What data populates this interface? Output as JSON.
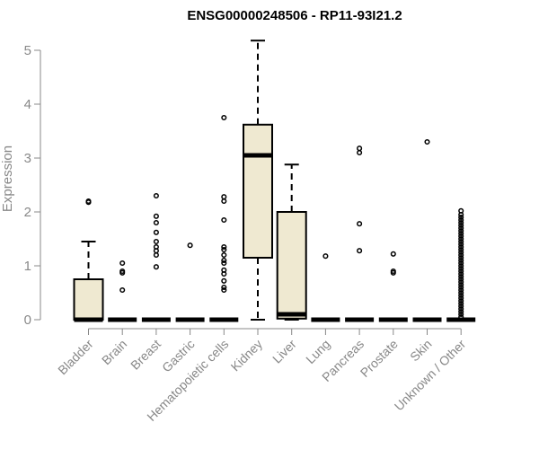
{
  "chart_data": {
    "type": "box",
    "title": "ENSG00000248506 - RP11-93I21.2",
    "ylabel": "Expression",
    "xlabel": "",
    "ylim": [
      0,
      5.2
    ],
    "yticks": [
      0,
      1,
      2,
      3,
      4,
      5
    ],
    "grid": false,
    "box_color": "#efe9d1",
    "categories": [
      "Bladder",
      "Brain",
      "Breast",
      "Gastric",
      "Hematopoietic cells",
      "Kidney",
      "Liver",
      "Lung",
      "Pancreas",
      "Prostate",
      "Skin",
      "Unknown / Other"
    ],
    "boxes": [
      {
        "name": "Bladder",
        "q1": 0,
        "median": 0,
        "q3": 0.75,
        "whisker_low": 0,
        "whisker_high": 1.45,
        "outliers": [
          2.18,
          2.2
        ]
      },
      {
        "name": "Brain",
        "q1": 0,
        "median": 0,
        "q3": 0,
        "whisker_low": 0,
        "whisker_high": 0,
        "outliers": [
          0.55,
          0.87,
          0.9,
          1.05
        ]
      },
      {
        "name": "Breast",
        "q1": 0,
        "median": 0,
        "q3": 0,
        "whisker_low": 0,
        "whisker_high": 0,
        "outliers": [
          0.98,
          1.2,
          1.28,
          1.35,
          1.45,
          1.62,
          1.8,
          1.92,
          2.3
        ]
      },
      {
        "name": "Gastric",
        "q1": 0,
        "median": 0,
        "q3": 0,
        "whisker_low": 0,
        "whisker_high": 0,
        "outliers": [
          1.38
        ]
      },
      {
        "name": "Hematopoietic cells",
        "q1": 0,
        "median": 0,
        "q3": 0,
        "whisker_low": 0,
        "whisker_high": 0,
        "outliers": [
          0.55,
          0.6,
          0.72,
          0.85,
          0.92,
          1.05,
          1.1,
          1.2,
          1.3,
          1.35,
          1.85,
          2.2,
          2.28,
          3.75
        ]
      },
      {
        "name": "Kidney",
        "q1": 1.15,
        "median": 3.05,
        "q3": 3.62,
        "whisker_low": 0,
        "whisker_high": 5.18,
        "outliers": []
      },
      {
        "name": "Liver",
        "q1": 0.02,
        "median": 0.1,
        "q3": 2.0,
        "whisker_low": 0,
        "whisker_high": 2.88,
        "outliers": []
      },
      {
        "name": "Lung",
        "q1": 0,
        "median": 0,
        "q3": 0,
        "whisker_low": 0,
        "whisker_high": 0,
        "outliers": [
          1.18
        ]
      },
      {
        "name": "Pancreas",
        "q1": 0,
        "median": 0,
        "q3": 0,
        "whisker_low": 0,
        "whisker_high": 0,
        "outliers": [
          1.28,
          1.78,
          3.1,
          3.18
        ]
      },
      {
        "name": "Prostate",
        "q1": 0,
        "median": 0,
        "q3": 0,
        "whisker_low": 0,
        "whisker_high": 0,
        "outliers": [
          0.87,
          0.9,
          1.22
        ]
      },
      {
        "name": "Skin",
        "q1": 0,
        "median": 0,
        "q3": 0,
        "whisker_low": 0,
        "whisker_high": 0,
        "outliers": [
          3.3
        ]
      },
      {
        "name": "Unknown / Other",
        "q1": 0,
        "median": 0,
        "q3": 0,
        "whisker_low": 0,
        "whisker_high": 0,
        "outliers": [
          0.05,
          0.1,
          0.15,
          0.2,
          0.25,
          0.3,
          0.35,
          0.4,
          0.45,
          0.5,
          0.55,
          0.6,
          0.65,
          0.7,
          0.75,
          0.8,
          0.85,
          0.9,
          0.95,
          1.0,
          1.05,
          1.1,
          1.15,
          1.2,
          1.25,
          1.3,
          1.35,
          1.4,
          1.45,
          1.5,
          1.55,
          1.6,
          1.65,
          1.7,
          1.75,
          1.8,
          1.85,
          1.9,
          1.95,
          2.02
        ]
      }
    ]
  }
}
